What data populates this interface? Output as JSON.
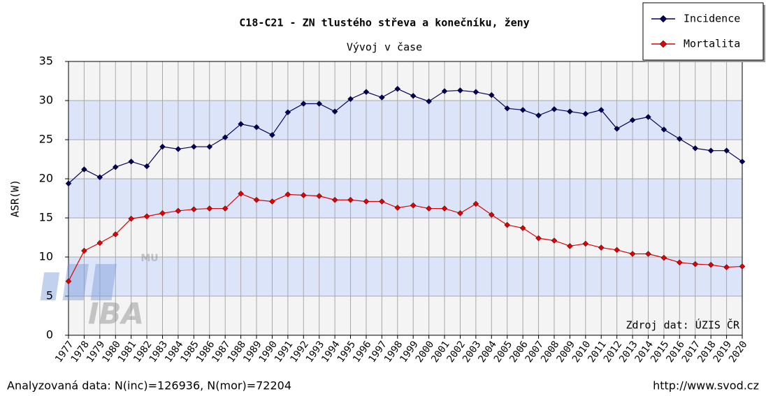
{
  "chart_data": {
    "type": "line",
    "title": "C18-C21 - ZN tlustého střeva a konečníku, ženy",
    "subtitle": "Vývoj v čase",
    "y_label": "ASR(W)",
    "source_note": "Zdroj dat: ÚZIS ČR",
    "footer_left": "Analyzovaná data: N(inc)=126936, N(mor)=72204",
    "footer_right": "http://www.svod.cz",
    "watermark": "IBA",
    "watermark_sub": "MU",
    "x": [
      1977,
      1978,
      1979,
      1980,
      1981,
      1982,
      1983,
      1984,
      1985,
      1986,
      1987,
      1988,
      1989,
      1990,
      1991,
      1992,
      1993,
      1994,
      1995,
      1996,
      1997,
      1998,
      1999,
      2000,
      2001,
      2002,
      2003,
      2004,
      2005,
      2006,
      2007,
      2008,
      2009,
      2010,
      2011,
      2012,
      2013,
      2014,
      2015,
      2016,
      2017,
      2018,
      2019,
      2020
    ],
    "xlim": [
      1977,
      2020
    ],
    "ylim": [
      0,
      35
    ],
    "yticks": [
      0,
      5,
      10,
      15,
      20,
      25,
      30,
      35
    ],
    "band_colors": [
      "#f4f4f4",
      "#dce4fa"
    ],
    "grid": true,
    "legend_position": "top-right",
    "series": [
      {
        "name": "Incidence",
        "color": "#00005a",
        "values": [
          19.4,
          21.2,
          20.2,
          21.5,
          22.2,
          21.6,
          24.1,
          23.8,
          24.1,
          24.1,
          25.3,
          27.0,
          26.6,
          25.6,
          28.5,
          29.6,
          29.6,
          28.6,
          30.2,
          31.1,
          30.4,
          31.5,
          30.6,
          29.9,
          31.2,
          31.3,
          31.1,
          30.7,
          29.0,
          28.8,
          28.1,
          28.9,
          28.6,
          28.3,
          28.8,
          26.4,
          27.5,
          27.9,
          26.3,
          25.1,
          23.9,
          23.6,
          23.6,
          22.2
        ]
      },
      {
        "name": "Mortalita",
        "color": "#e00000",
        "values": [
          6.9,
          10.8,
          11.8,
          12.9,
          14.9,
          15.2,
          15.6,
          15.9,
          16.1,
          16.2,
          16.2,
          18.1,
          17.3,
          17.1,
          18.0,
          17.9,
          17.8,
          17.3,
          17.3,
          17.1,
          17.1,
          16.3,
          16.6,
          16.2,
          16.2,
          15.6,
          16.8,
          15.4,
          14.1,
          13.7,
          12.4,
          12.1,
          11.4,
          11.7,
          11.2,
          10.9,
          10.4,
          10.4,
          9.9,
          9.3,
          9.1,
          9.0,
          8.7,
          8.8
        ]
      }
    ]
  }
}
